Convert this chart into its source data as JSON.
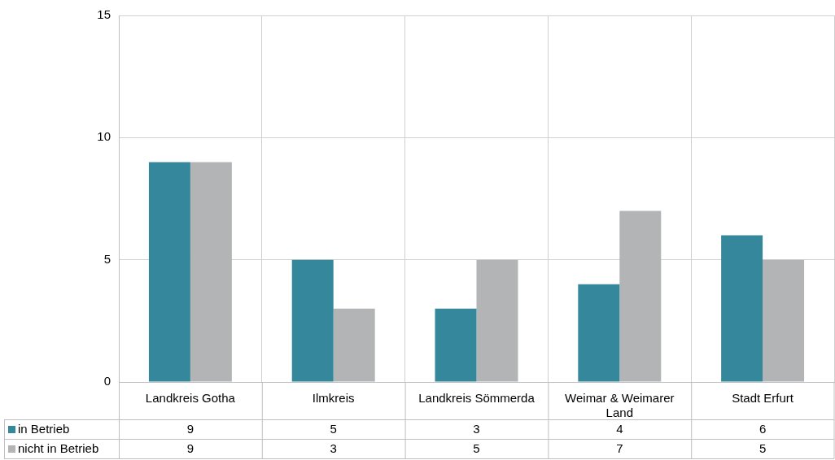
{
  "chart_data": {
    "type": "bar",
    "categories": [
      "Landkreis Gotha",
      "Ilmkreis",
      "Landkreis Sömmerda",
      "Weimar & Weimarer Land",
      "Stadt Erfurt"
    ],
    "series": [
      {
        "name": "in Betrieb",
        "color": "#35889b",
        "values": [
          9,
          5,
          3,
          4,
          6
        ]
      },
      {
        "name": "nicht in Betrieb",
        "color": "#b2b4b5",
        "values": [
          9,
          3,
          5,
          7,
          5
        ]
      }
    ],
    "ylim": [
      0,
      15
    ],
    "yticks": [
      0,
      5,
      10,
      15
    ],
    "grid": true,
    "legend": "bottom",
    "data_labels": true
  }
}
